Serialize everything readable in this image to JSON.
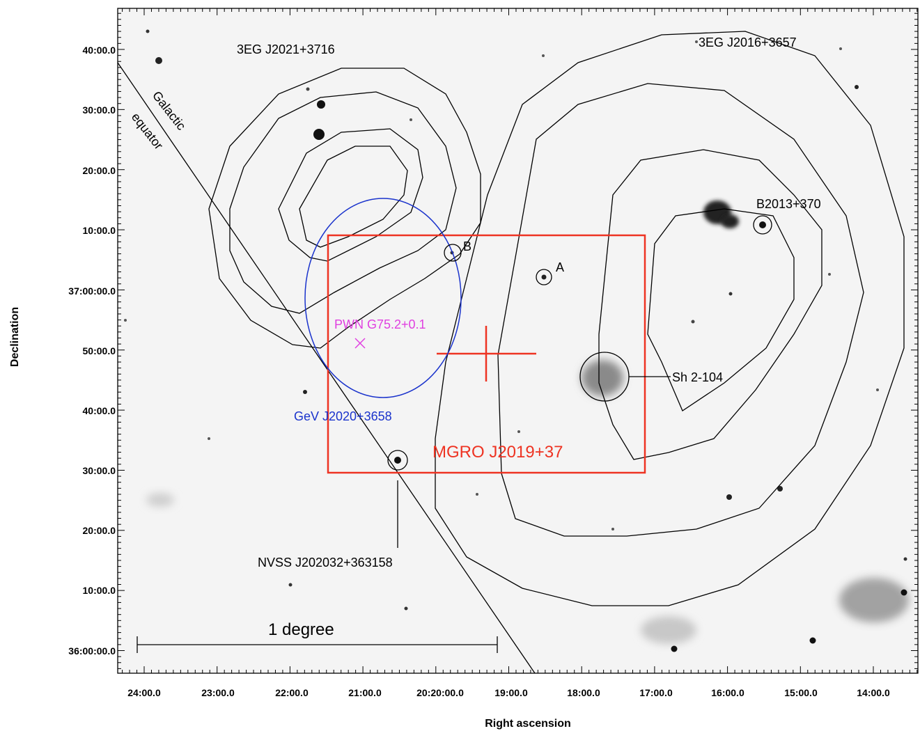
{
  "axes": {
    "xlabel": "Right ascension",
    "ylabel": "Declination",
    "x_ticks": [
      "24:00.0",
      "23:00.0",
      "22:00.0",
      "21:00.0",
      "20:20:00.0",
      "19:00.0",
      "18:00.0",
      "17:00.0",
      "16:00.0",
      "15:00.0",
      "14:00.0"
    ],
    "y_ticks": [
      "40:00.0",
      "30:00.0",
      "20:00.0",
      "10:00.0",
      "37:00:00.0",
      "50:00.0",
      "40:00.0",
      "30:00.0",
      "20:00.0",
      "10:00.0",
      "36:00:00.0"
    ]
  },
  "labels": {
    "egret_east": "3EG J2021+3716",
    "egret_west": "3EG J2016+3657",
    "galactic_1": "Galactic",
    "galactic_2": "equator",
    "source_b": "B",
    "source_a": "A",
    "b2013": "B2013+370",
    "pwn": "PWN G75.2+0.1",
    "sh2": "Sh 2-104",
    "gev": "GeV J2020+3658",
    "mgro": "MGRO J2019+37",
    "nvss": "NVSS J202032+363158",
    "scale": "1 degree"
  },
  "colors": {
    "mgro": "#ee3322",
    "gev": "#1a33cc",
    "pwn": "#e040e0",
    "contour": "#000000"
  }
}
